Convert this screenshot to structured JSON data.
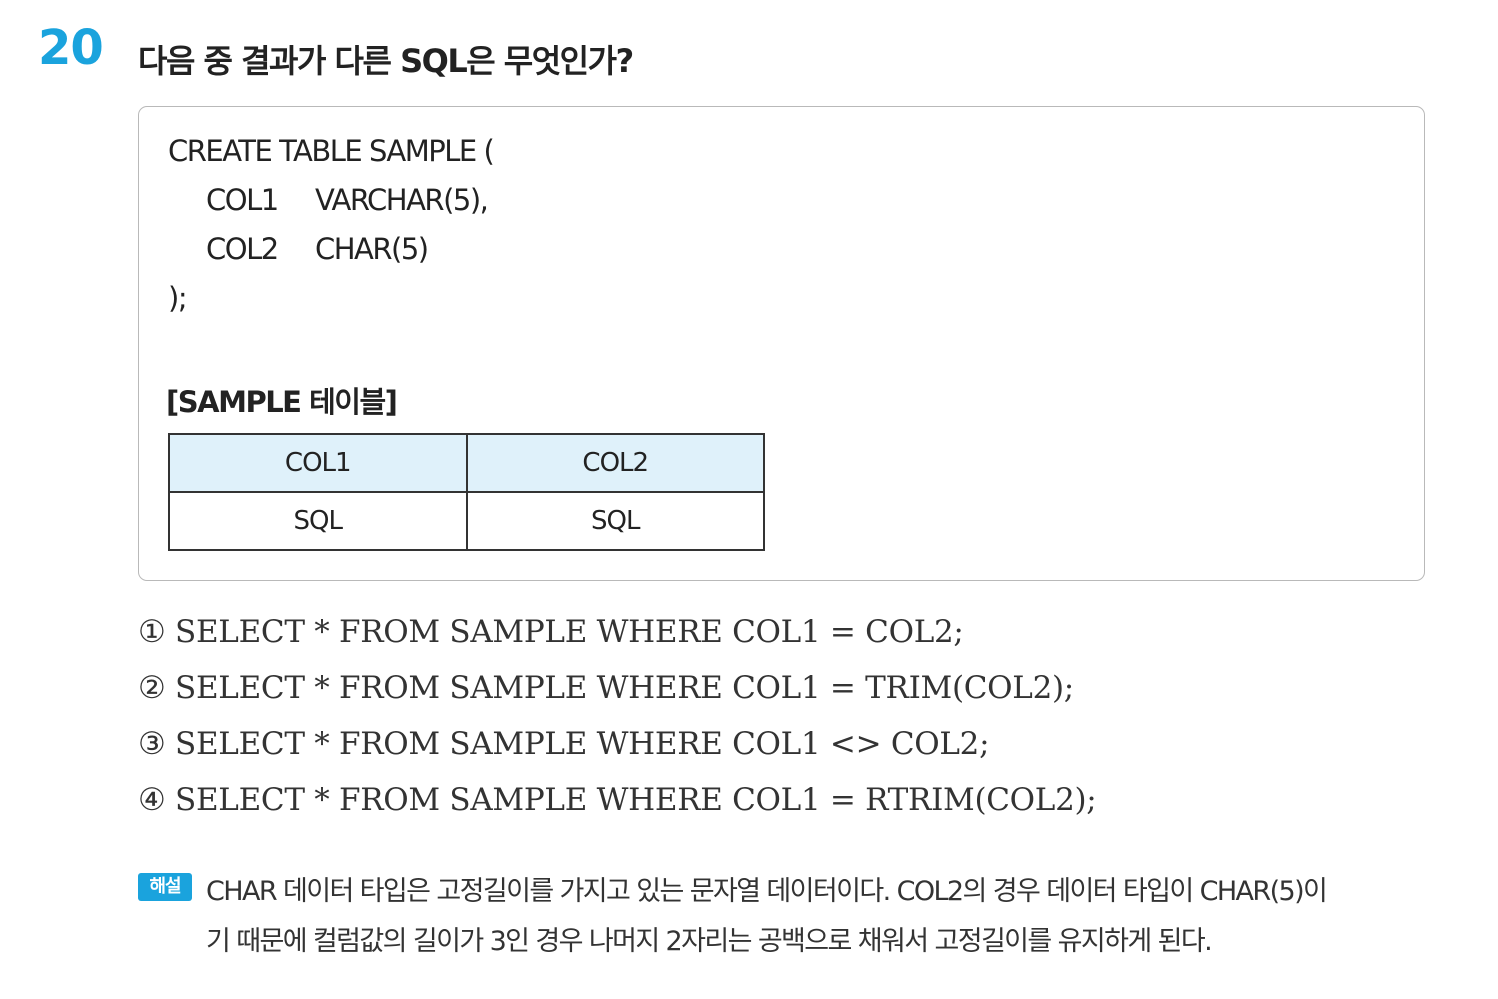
{
  "question": {
    "number": "20",
    "text": "다음 중 결과가 다른 SQL은 무엇인가?"
  },
  "code": {
    "line1": "CREATE TABLE SAMPLE (",
    "col1_name": "COL1",
    "col1_type": "VARCHAR(5),",
    "col2_name": "COL2",
    "col2_type": "CHAR(5)",
    "line_end": ");"
  },
  "sample_table": {
    "title": "[SAMPLE 테이블]",
    "headers": [
      "COL1",
      "COL2"
    ],
    "rows": [
      [
        "SQL",
        "SQL"
      ]
    ]
  },
  "options": [
    "① SELECT * FROM SAMPLE WHERE COL1 = COL2;",
    "② SELECT * FROM SAMPLE WHERE COL1 = TRIM(COL2);",
    "③ SELECT * FROM SAMPLE WHERE COL1 <> COL2;",
    "④ SELECT * FROM SAMPLE WHERE COL1 = RTRIM(COL2);"
  ],
  "explanation": {
    "badge": "해설",
    "line1": "CHAR 데이터 타입은 고정길이를 가지고 있는 문자열 데이터이다. COL2의 경우 데이터 타입이 CHAR(5)이",
    "line2": "기 때문에 컬럼값의 길이가 3인 경우 나머지 2자리는 공백으로 채워서 고정길이를 유지하게 된다."
  },
  "colors": {
    "accent": "#1aa3dd",
    "table_header_bg": "#dff1fa"
  }
}
